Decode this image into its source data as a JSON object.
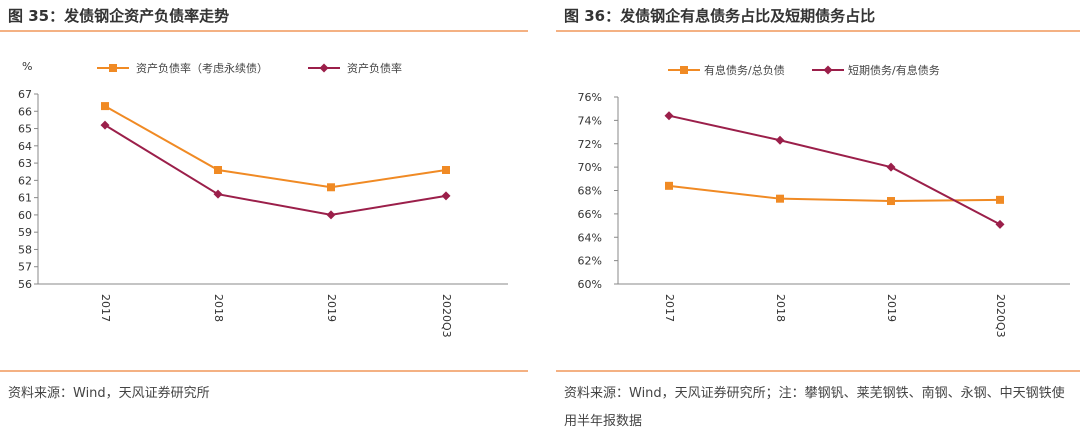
{
  "left": {
    "title": "图 35：发债钢企资产负债率走势",
    "source": "资料来源：Wind，天风证券研究所"
  },
  "right": {
    "title": "图 36：发债钢企有息债务占比及短期债务占比",
    "source": "资料来源：Wind，天风证券研究所；注：攀钢钒、莱芜钢铁、南钢、永钢、中天钢铁使用半年报数据"
  },
  "colors": {
    "orange": "#f08a24",
    "purple": "#9b1f4a",
    "rule": "#f4b183"
  },
  "chart_data": [
    {
      "type": "line",
      "ylabel": "%",
      "categories": [
        "2017",
        "2018",
        "2019",
        "2020Q3"
      ],
      "ylim": [
        56,
        67
      ],
      "yticks": [
        "56",
        "57",
        "58",
        "59",
        "60",
        "61",
        "62",
        "63",
        "64",
        "65",
        "66",
        "67"
      ],
      "series": [
        {
          "name": "资产负债率（考虑永续债）",
          "values": [
            66.3,
            62.6,
            61.6,
            62.6
          ],
          "marker": "square",
          "color": "#f08a24"
        },
        {
          "name": "资产负债率",
          "values": [
            65.2,
            61.2,
            60.0,
            61.1
          ],
          "marker": "diamond",
          "color": "#9b1f4a"
        }
      ],
      "legend": "top",
      "grid": false
    },
    {
      "type": "line",
      "categories": [
        "2017",
        "2018",
        "2019",
        "2020Q3"
      ],
      "ylim": [
        60,
        76
      ],
      "yticks": [
        "60%",
        "62%",
        "64%",
        "66%",
        "68%",
        "70%",
        "72%",
        "74%",
        "76%"
      ],
      "series": [
        {
          "name": "有息债务/总负债",
          "values": [
            68.4,
            67.3,
            67.1,
            67.2
          ],
          "marker": "square",
          "color": "#f08a24"
        },
        {
          "name": "短期债务/有息债务",
          "values": [
            74.4,
            72.3,
            70.0,
            65.1
          ],
          "marker": "diamond",
          "color": "#9b1f4a"
        }
      ],
      "legend": "top",
      "grid": false
    }
  ]
}
